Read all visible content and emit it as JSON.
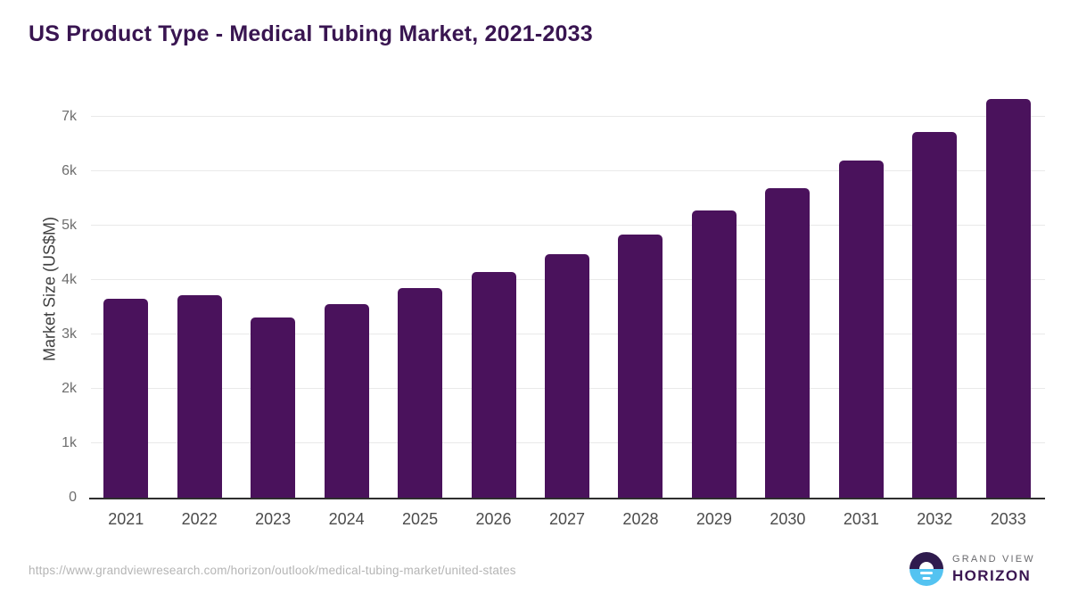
{
  "header": {
    "title": "US Product Type - Medical Tubing Market, 2021-2033"
  },
  "footer": {
    "source_url": "https://www.grandviewresearch.com/horizon/outlook/medical-tubing-market/united-states",
    "brand_line1": "GRAND VIEW",
    "brand_line2": "HORIZON"
  },
  "colors": {
    "bar": "#4a125c",
    "title_text": "#391551",
    "gridline": "#e9e9e9",
    "axis_line": "#2e2e2e",
    "ytick_text": "#6e6e6e",
    "xtick_text": "#4b4b4b",
    "url_text": "#b5b5b5",
    "logo_dark": "#2f1b4e",
    "logo_blue": "#54c3f1",
    "logo_purple_text": "#3b1652"
  },
  "chart_data": {
    "type": "bar",
    "title": "US Product Type - Medical Tubing Market, 2021-2033",
    "categories": [
      "2021",
      "2022",
      "2023",
      "2024",
      "2025",
      "2026",
      "2027",
      "2028",
      "2029",
      "2030",
      "2031",
      "2032",
      "2033"
    ],
    "values": [
      3650,
      3710,
      3310,
      3550,
      3850,
      4150,
      4470,
      4830,
      5270,
      5690,
      6190,
      6720,
      7320
    ],
    "xlabel": "",
    "ylabel": "Market Size (US$M)",
    "ylim": [
      0,
      7500
    ],
    "yticks": [
      {
        "value": 0,
        "label": "0"
      },
      {
        "value": 1000,
        "label": "1k"
      },
      {
        "value": 2000,
        "label": "2k"
      },
      {
        "value": 3000,
        "label": "3k"
      },
      {
        "value": 4000,
        "label": "4k"
      },
      {
        "value": 5000,
        "label": "5k"
      },
      {
        "value": 6000,
        "label": "6k"
      },
      {
        "value": 7000,
        "label": "7k"
      }
    ],
    "grid": true,
    "legend": null,
    "bar_color": "#4a125c"
  }
}
